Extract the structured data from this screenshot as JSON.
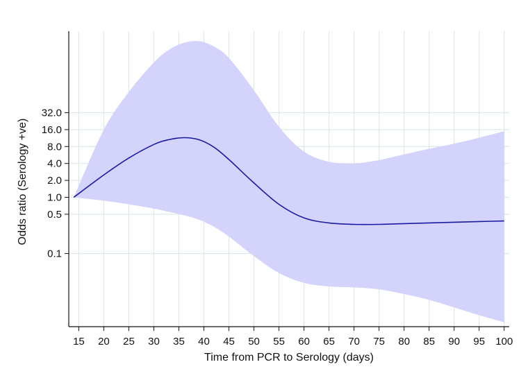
{
  "chart_data": {
    "type": "line",
    "xlabel": "Time from PCR to Serology (days)",
    "ylabel": "Odds ratio (Serology +ve)",
    "x_ticks": [
      15,
      20,
      25,
      30,
      35,
      40,
      45,
      50,
      55,
      60,
      65,
      70,
      75,
      80,
      85,
      90,
      95,
      100
    ],
    "y_ticks": [
      {
        "value": 0.1,
        "label": "0.1"
      },
      {
        "value": 0.5,
        "label": "0.5"
      },
      {
        "value": 1,
        "label": "1.0"
      },
      {
        "value": 2,
        "label": "2.0"
      },
      {
        "value": 4,
        "label": "4.0"
      },
      {
        "value": 8,
        "label": "8.0"
      },
      {
        "value": 16,
        "label": "16.0"
      },
      {
        "value": 32,
        "label": "32.0"
      }
    ],
    "xlim": [
      13,
      101
    ],
    "ylim": [
      0.005,
      900
    ],
    "y_scale": "log",
    "grid": true,
    "colors": {
      "line": "#1a1aa0",
      "band": "#d3d3fb",
      "grid": "#dce9ea",
      "axis": "#111111"
    },
    "series": [
      {
        "x": [
          14,
          20,
          25,
          30,
          33,
          36,
          39,
          42,
          45,
          50,
          55,
          60,
          65,
          70,
          75,
          80,
          85,
          90,
          95,
          100
        ],
        "y": [
          1.0,
          2.5,
          5.0,
          8.7,
          10.6,
          11.5,
          10.6,
          7.8,
          4.7,
          1.8,
          0.75,
          0.43,
          0.35,
          0.33,
          0.33,
          0.34,
          0.35,
          0.36,
          0.37,
          0.38
        ],
        "lower": [
          1.0,
          0.87,
          0.75,
          0.63,
          0.55,
          0.48,
          0.4,
          0.3,
          0.2,
          0.09,
          0.045,
          0.03,
          0.026,
          0.025,
          0.023,
          0.019,
          0.015,
          0.011,
          0.008,
          0.006
        ],
        "upper": [
          1.0,
          16,
          75,
          250,
          420,
          560,
          600,
          480,
          300,
          80,
          18,
          6.5,
          4.3,
          4.0,
          4.6,
          5.8,
          7.3,
          9.0,
          11.5,
          15
        ]
      }
    ]
  }
}
